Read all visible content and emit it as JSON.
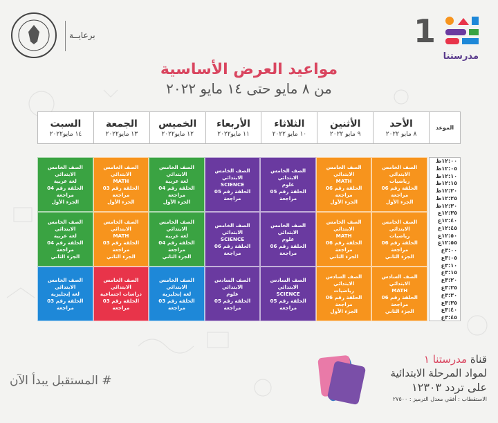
{
  "header": {
    "logo_text": "مدرستنا",
    "logo_number": "1",
    "sponsor": "برعايــة",
    "title_main": "مواعيد العرض الأساسية",
    "title_sub": "من ٨ مايو حتى ١٤ مايو ٢٠٢٢"
  },
  "table": {
    "corner_label": "الموعد",
    "days": [
      {
        "name": "الأحد",
        "date": "٨ مايو ٢٠٢٢"
      },
      {
        "name": "الأثنين",
        "date": "٩ مايو ٢٠٢٢"
      },
      {
        "name": "الثلاثاء",
        "date": "١٠ مايو ٢٠٢٢"
      },
      {
        "name": "الأربعاء",
        "date": "١١ مايو٢٠٢٢"
      },
      {
        "name": "الخميس",
        "date": "١٢ مايو٢٠٢٢"
      },
      {
        "name": "الجمعة",
        "date": "١٣ مايو٢٠٢٢"
      },
      {
        "name": "السبت",
        "date": "١٤ مايو٢٠٢٢"
      }
    ],
    "times": [
      "١٢:٠٠ظ",
      "١٢:٠٥ظ",
      "١٢:١٠ظ",
      "١٢:١٥ظ",
      "١٢:٢٠ظ",
      "١٢:٢٥ظ",
      "١٢:٣٠ظ",
      "١٢:٣٥ع",
      "١٢:٤٠ع",
      "١٢:٤٥ع",
      "١٢:٥٠ع",
      "١٢:٥٥ع",
      "٣:٠٠ع",
      "٣:٠٥ع",
      "٣:١٠ع",
      "٣:١٥ع",
      "٣:٢٠ع",
      "٣:٢٥ع",
      "٣:٣٠ع",
      "٣:٣٥ع",
      "٣:٤٠ع",
      "٣:٤٥ع"
    ],
    "blocks": [
      [
        {
          "color": "orange",
          "lines": [
            "الصف الخامس الابتدائي",
            "رياضيات",
            "الحلقة رقم 06 مراجعة",
            "الجزء الأول"
          ]
        },
        {
          "color": "orange",
          "lines": [
            "الصف الخامس الابتدائي",
            "MATH",
            "الحلقة رقم 06 مراجعة",
            "الجزء الأول"
          ]
        },
        {
          "color": "purple",
          "lines": [
            "الصف الخامس الابتدائي",
            "علوم",
            "الحلقة رقم 05 مراجعة"
          ]
        },
        {
          "color": "purple",
          "lines": [
            "الصف الخامس الابتدائي",
            "SCIENCE",
            "الحلقة رقم 05 مراجعة"
          ]
        },
        {
          "color": "green",
          "lines": [
            "الصف الخامس الابتدائي",
            "لغة عربية",
            "الحلقة رقم 04 مراجعة",
            "الجزء الأول"
          ]
        },
        {
          "color": "orange",
          "lines": [
            "الصف الخامس الابتدائي",
            "MATH",
            "الحلقة رقم 03 مراجعة",
            "الجزء الأول"
          ]
        },
        {
          "color": "green",
          "lines": [
            "الصف الخامس الابتدائي",
            "لغة عربية",
            "الحلقة رقم 04 مراجعة",
            "الجزء الأول"
          ]
        }
      ],
      [
        {
          "color": "orange",
          "lines": [
            "الصف الخامس الابتدائي",
            "رياضيات",
            "الحلقة رقم 06 مراجعة",
            "الجزء الثاني"
          ]
        },
        {
          "color": "orange",
          "lines": [
            "الصف الخامس الابتدائي",
            "MATH",
            "الحلقة رقم 06 مراجعة",
            "الجزء الثاني"
          ]
        },
        {
          "color": "purple",
          "lines": [
            "الصف الخامس الابتدائي",
            "علوم",
            "الحلقة رقم 06 مراجعة"
          ]
        },
        {
          "color": "purple",
          "lines": [
            "الصف الخامس الابتدائي",
            "SCIENCE",
            "الحلقة رقم 06 مراجعة"
          ]
        },
        {
          "color": "green",
          "lines": [
            "الصف الخامس الابتدائي",
            "لغة عربية",
            "الحلقة رقم 04 مراجعة",
            "الجزء الثاني"
          ]
        },
        {
          "color": "orange",
          "lines": [
            "الصف الخامس الابتدائي",
            "MATH",
            "الحلقة رقم 03 مراجعة",
            "الجزء الثاني"
          ]
        },
        {
          "color": "green",
          "lines": [
            "الصف الخامس الابتدائي",
            "لغة عربية",
            "الحلقة رقم 04 مراجعة",
            "الجزء الثاني"
          ]
        }
      ],
      [
        {
          "color": "orange",
          "lines": [
            "الصف السادس الابتدائي",
            "MATH",
            "الحلقة رقم 06 مراجعة",
            "الجزء الثاني"
          ]
        },
        {
          "color": "orange",
          "lines": [
            "الصف السادس الابتدائي",
            "رياضيات",
            "الحلقة رقم 06 مراجعة",
            "الجزء الأول"
          ]
        },
        {
          "color": "purple",
          "lines": [
            "الصف السادس الابتدائي",
            "SCIENCE",
            "الحلقة رقم 05 مراجعة"
          ]
        },
        {
          "color": "purple",
          "lines": [
            "الصف السادس الابتدائي",
            "علوم",
            "الحلقة رقم 05 مراجعة"
          ]
        },
        {
          "color": "blue",
          "lines": [
            "الصف الخامس الابتدائي",
            "لغة إنجليزية",
            "الحلقة رقم 03 مراجعة"
          ]
        },
        {
          "color": "red",
          "lines": [
            "الصف الخامس الابتدائي",
            "دراسات اجتماعية",
            "الحلقة رقم 03 مراجعة"
          ]
        },
        {
          "color": "blue",
          "lines": [
            "الصف الخامس الابتدائي",
            "لغة إنجليزية",
            "الحلقة رقم 03 مراجعة"
          ]
        }
      ]
    ]
  },
  "footer": {
    "slogan": "# المستقبل يبدأ الآن",
    "channel_prefix": "قناة",
    "channel_name": "مدرستنا ١",
    "channel_line2": "لمواد المرحلة الابتدائية",
    "channel_line3": "على تردد ١٢٣٠٣",
    "channel_line4": "الاستقطاب : أفقي معدل الترميز : ٢٧٥٠٠"
  },
  "colors": {
    "orange": "#f7941d",
    "purple": "#6a3aa0",
    "green": "#3aa342",
    "blue": "#1e88d8",
    "red": "#e8344a",
    "title": "#d9455f"
  }
}
